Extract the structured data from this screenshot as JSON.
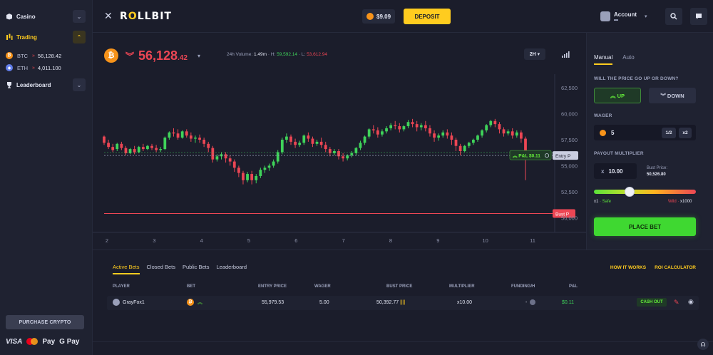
{
  "sidebar": {
    "items": [
      {
        "label": "Casino"
      },
      {
        "label": "Trading"
      },
      {
        "label": "Leaderboard"
      }
    ],
    "coins": [
      {
        "symbol": "BTC",
        "price": "56,128.42"
      },
      {
        "symbol": "ETH",
        "price": "4,011.100"
      }
    ],
    "purchase_label": "PURCHASE CRYPTO",
    "payments": {
      "visa": "VISA",
      "apple": "Pay",
      "google": "G Pay"
    }
  },
  "header": {
    "logo": "ROLLBIT",
    "balance": "$9.09",
    "deposit_label": "DEPOSIT",
    "account_label": "Account",
    "account_sub": "▬"
  },
  "chart_head": {
    "price_main": "56,128",
    "price_decimals": ".42",
    "volume_label": "24h Volume:",
    "volume_value": "1.49m",
    "high_label": "H:",
    "high_value": "59,592.14",
    "low_label": "L:",
    "low_value": "53,612.94",
    "timeframe": "2H"
  },
  "chart_data": {
    "type": "candlestick",
    "x_ticks": [
      "2",
      "3",
      "4",
      "5",
      "6",
      "7",
      "8",
      "9",
      "10",
      "11"
    ],
    "y_ticks": [
      62500,
      60000,
      57500,
      55000,
      52500,
      50000
    ],
    "ylim": [
      49400,
      63400
    ],
    "entry_price": 55979.53,
    "bust_price": 50392.77,
    "current_price": 56128.42,
    "markers": {
      "pnl_label": "P&L",
      "pnl_value": "$0.11",
      "entry_label": "Entry P",
      "bust_label": "Bust P"
    },
    "candles": [
      [
        57800,
        57900,
        57200,
        57000
      ],
      [
        57200,
        57500,
        56800,
        56600
      ],
      [
        56800,
        57100,
        56500,
        56300
      ],
      [
        56600,
        57200,
        57100,
        56400
      ],
      [
        57100,
        57300,
        56700,
        56500
      ],
      [
        56700,
        56900,
        56200,
        56000
      ],
      [
        56200,
        56700,
        56600,
        56100
      ],
      [
        56600,
        56900,
        56300,
        56100
      ],
      [
        56300,
        56900,
        56800,
        56200
      ],
      [
        56800,
        57100,
        56600,
        56400
      ],
      [
        56600,
        57000,
        56900,
        56500
      ],
      [
        56900,
        57100,
        56700,
        56500
      ],
      [
        56700,
        57000,
        56500,
        56300
      ],
      [
        56500,
        56800,
        56600,
        56300
      ],
      [
        56600,
        57800,
        57700,
        56500
      ],
      [
        57700,
        58300,
        58200,
        57500
      ],
      [
        58200,
        58600,
        58100,
        57800
      ],
      [
        58100,
        58500,
        57700,
        57500
      ],
      [
        57700,
        58400,
        58300,
        57600
      ],
      [
        58300,
        58500,
        57900,
        57700
      ],
      [
        57900,
        58200,
        57600,
        57300
      ],
      [
        57600,
        57900,
        57700,
        57200
      ],
      [
        57700,
        58000,
        57500,
        57200
      ],
      [
        57500,
        57700,
        57100,
        56800
      ],
      [
        57100,
        57300,
        56700,
        56300
      ],
      [
        56700,
        56900,
        55600,
        55300
      ],
      [
        55600,
        56100,
        55900,
        55400
      ],
      [
        55900,
        56300,
        56100,
        55600
      ],
      [
        56100,
        56300,
        55700,
        55300
      ],
      [
        55700,
        56000,
        55400,
        55000
      ],
      [
        55400,
        55600,
        54800,
        54400
      ],
      [
        54800,
        55000,
        54300,
        53900
      ],
      [
        54300,
        54500,
        53600,
        53200
      ],
      [
        53600,
        54400,
        54200,
        53400
      ],
      [
        54200,
        54500,
        53600,
        53200
      ],
      [
        53600,
        54200,
        54000,
        53300
      ],
      [
        54000,
        54800,
        54600,
        53800
      ],
      [
        54600,
        55000,
        54800,
        54300
      ],
      [
        54800,
        55200,
        55000,
        54500
      ],
      [
        55000,
        55600,
        55400,
        54800
      ],
      [
        55400,
        56500,
        56300,
        55200
      ],
      [
        56300,
        57700,
        57500,
        56100
      ],
      [
        57500,
        58100,
        57800,
        57200
      ],
      [
        57800,
        58000,
        57300,
        57000
      ],
      [
        57300,
        57600,
        57000,
        56700
      ],
      [
        57000,
        57400,
        57200,
        56800
      ],
      [
        57200,
        58000,
        57900,
        57000
      ],
      [
        57900,
        58200,
        57600,
        57300
      ],
      [
        57600,
        57800,
        57100,
        56800
      ],
      [
        57100,
        57500,
        57300,
        56900
      ],
      [
        57300,
        57700,
        57000,
        56700
      ],
      [
        57000,
        57300,
        56600,
        56300
      ],
      [
        56600,
        56800,
        56200,
        55900
      ],
      [
        56200,
        56600,
        56400,
        56000
      ],
      [
        56400,
        56600,
        55900,
        55600
      ],
      [
        55900,
        56200,
        55700,
        55400
      ],
      [
        55700,
        56100,
        56000,
        55500
      ],
      [
        56000,
        56400,
        56200,
        55800
      ],
      [
        56200,
        56800,
        56700,
        56000
      ],
      [
        56700,
        57400,
        57200,
        56500
      ],
      [
        57200,
        57900,
        57800,
        57000
      ],
      [
        57800,
        58600,
        58500,
        57600
      ],
      [
        58500,
        58900,
        58400,
        58100
      ],
      [
        58400,
        58700,
        58000,
        57700
      ],
      [
        58000,
        58500,
        58300,
        57800
      ],
      [
        58300,
        58800,
        58600,
        58100
      ],
      [
        58600,
        59100,
        58900,
        58400
      ],
      [
        58900,
        59300,
        58800,
        58500
      ],
      [
        58800,
        59100,
        58500,
        58200
      ],
      [
        58500,
        58900,
        58800,
        58300
      ],
      [
        58800,
        59400,
        59200,
        58600
      ],
      [
        59200,
        59500,
        59000,
        58700
      ],
      [
        59000,
        59300,
        58700,
        58300
      ],
      [
        58700,
        59100,
        58900,
        58400
      ],
      [
        58900,
        59300,
        58600,
        58300
      ],
      [
        58600,
        58900,
        58100,
        57800
      ],
      [
        58100,
        58400,
        57700,
        57300
      ],
      [
        57700,
        58100,
        57900,
        57400
      ],
      [
        57900,
        58400,
        58200,
        57700
      ],
      [
        58200,
        58500,
        57900,
        57600
      ],
      [
        57900,
        58200,
        57500,
        57000
      ],
      [
        57500,
        57700,
        56900,
        56400
      ],
      [
        56900,
        57100,
        56400,
        56000
      ],
      [
        56400,
        57000,
        56900,
        56300
      ],
      [
        56900,
        57300,
        57200,
        56700
      ],
      [
        57200,
        57600,
        57500,
        57000
      ],
      [
        57500,
        58000,
        57900,
        57300
      ],
      [
        57900,
        58500,
        58400,
        57700
      ],
      [
        58400,
        59000,
        58900,
        58200
      ],
      [
        58900,
        59400,
        59300,
        58700
      ],
      [
        59300,
        59500,
        59000,
        58700
      ],
      [
        59000,
        59200,
        58500,
        58100
      ],
      [
        58500,
        58700,
        58100,
        57800
      ],
      [
        58100,
        58500,
        58300,
        57900
      ],
      [
        58300,
        58600,
        57900,
        57600
      ],
      [
        57900,
        58400,
        58200,
        57700
      ],
      [
        58200,
        58400,
        57600,
        57200
      ],
      [
        57600,
        57800,
        55900,
        53600
      ]
    ]
  },
  "trade_panel": {
    "tab_manual": "Manual",
    "tab_auto": "Auto",
    "question": "WILL THE PRICE GO UP OR DOWN?",
    "up_label": "UP",
    "down_label": "DOWN",
    "wager_label": "WAGER",
    "wager_value": "5",
    "half_label": "1/2",
    "double_label": "x2",
    "multiplier_label": "PAYOUT MULTIPLIER",
    "multiplier_prefix": "x",
    "multiplier_value": "10.00",
    "bust_price_label": "Bust Price:",
    "bust_price_value": "50,526.80",
    "slider_fraction": 0.35,
    "slider_left_x": "x1",
    "slider_left_txt": "· Safe",
    "slider_right_txt": "Wild ·",
    "slider_right_x": "x1000",
    "place_label": "PLACE BET"
  },
  "bets": {
    "tabs": [
      "Active Bets",
      "Closed Bets",
      "Public Bets",
      "Leaderboard"
    ],
    "links": [
      "HOW IT WORKS",
      "ROI CALCULATOR"
    ],
    "columns": [
      "PLAYER",
      "BET",
      "ENTRY PRICE",
      "WAGER",
      "BUST PRICE",
      "MULTIPLIER",
      "FUNDING/H",
      "P&L"
    ],
    "row": {
      "player": "GrayFox1",
      "entry": "55,979.53",
      "wager": "5.00",
      "bust": "50,392.77",
      "multiplier": "x10.00",
      "funding": "-",
      "pnl": "$0.11",
      "cashout_label": "CASH OUT"
    }
  },
  "colors": {
    "up": "#3fd35a",
    "down": "#ec4654",
    "accent": "#ffcc1f",
    "background": "#1b1d2b"
  }
}
